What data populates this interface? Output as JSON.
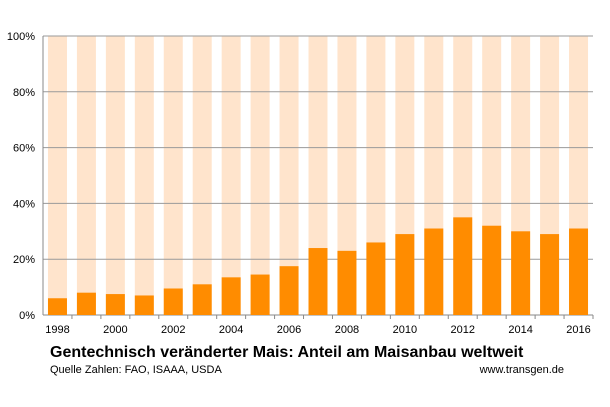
{
  "chart_data": {
    "type": "bar",
    "title": "Gentechnisch veränderter Mais: Anteil am Maisanbau weltweit",
    "source": "Quelle Zahlen: FAO, ISAAA, USDA",
    "website": "www.transgen.de",
    "categories": [
      "1998",
      "1999",
      "2000",
      "2001",
      "2002",
      "2003",
      "2004",
      "2005",
      "2006",
      "2007",
      "2008",
      "2009",
      "2010",
      "2011",
      "2012",
      "2013",
      "2014",
      "2015",
      "2016"
    ],
    "x_tick_labels": [
      "1998",
      "",
      "2000",
      "",
      "2002",
      "",
      "2004",
      "",
      "2006",
      "",
      "2008",
      "",
      "2010",
      "",
      "2012",
      "",
      "2014",
      "",
      "2016"
    ],
    "series": [
      {
        "values": [
          6,
          8,
          7.5,
          7,
          9.5,
          11,
          13.5,
          14.5,
          17.5,
          24,
          23,
          26,
          29,
          31,
          35,
          32,
          30,
          29,
          31
        ]
      }
    ],
    "background_value": 100,
    "ylim": [
      0,
      100
    ],
    "yticks": [
      0,
      20,
      40,
      60,
      80,
      100
    ],
    "ytick_labels": [
      "0%",
      "20%",
      "40%",
      "60%",
      "80%",
      "100%"
    ],
    "grid": true,
    "colors": {
      "bar": "#ff8c00",
      "bar_background": "#ffe4cc",
      "grid": "#9a9a9a",
      "axis": "#888888"
    }
  }
}
